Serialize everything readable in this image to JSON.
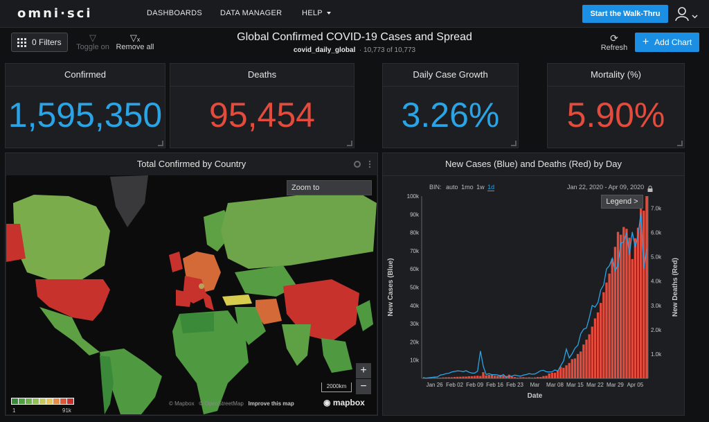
{
  "nav": {
    "logo": "omni·sci",
    "items": [
      "DASHBOARDS",
      "DATA MANAGER",
      "HELP"
    ],
    "walkthru_label": "Start the Walk-Thru"
  },
  "toolbar": {
    "filters_label": "0 Filters",
    "toggle_label": "Toggle on",
    "remove_label": "Remove all",
    "refresh_label": "Refresh",
    "add_chart_label": "Add Chart"
  },
  "dashboard": {
    "title": "Global Confirmed COVID-19 Cases and Spread",
    "source_table": "covid_daily_global",
    "row_count": "· 10,773 of 10,773"
  },
  "kpis": [
    {
      "title": "Confirmed",
      "value": "1,595,350",
      "color": "#2ba4e6"
    },
    {
      "title": "Deaths",
      "value": "95,454",
      "color": "#e34b3d"
    },
    {
      "title": "Daily Case Growth",
      "value": "3.26%",
      "color": "#2ba4e6"
    },
    {
      "title": "Mortality (%)",
      "value": "5.90%",
      "color": "#e34b3d"
    }
  ],
  "map_panel": {
    "title": "Total Confirmed by Country",
    "zoom_to_placeholder": "Zoom to",
    "zoom_in": "+",
    "zoom_out": "−",
    "scale_label": "2000km",
    "attribution_mapbox": "© Mapbox",
    "attribution_osm": "© OpenStreetMap",
    "improve_label": "Improve this map",
    "mapbox_logo": "mapbox",
    "legend_min": "1",
    "legend_max": "91k",
    "legend_colors": [
      "#3a8a3a",
      "#4fa03f",
      "#6eb04a",
      "#93bf57",
      "#c4c85f",
      "#e7c45a",
      "#e58d48",
      "#dc5a3c",
      "#c8322c"
    ],
    "colors": {
      "low": "#4f9a41",
      "mid": "#79a84a",
      "warm": "#d46a37",
      "hot": "#c8322c",
      "yellow": "#d7cc4d",
      "nodata": "#3a3b3e"
    }
  },
  "chart_panel": {
    "title": "New Cases (Blue) and Deaths (Red) by Day",
    "bin_label": "BIN:",
    "bin_options": [
      "auto",
      "1mo",
      "1w",
      "1d"
    ],
    "bin_selected": "1d",
    "date_range": "Jan 22, 2020  -  Apr 09, 2020",
    "legend_label": "Legend >"
  },
  "chart_data": {
    "type": "bar",
    "title": "New Cases (Blue) and Deaths (Red) by Day",
    "xlabel": "Date",
    "ylabel": "New Cases (Blue)",
    "y2label": "New Deaths (Red)",
    "x_ticks": [
      "Jan 26",
      "Feb 02",
      "Feb 09",
      "Feb 16",
      "Feb 23",
      "Mar",
      "Mar 08",
      "Mar 15",
      "Mar 22",
      "Mar 29",
      "Apr 05"
    ],
    "y_ticks": [
      "10k",
      "20k",
      "30k",
      "40k",
      "50k",
      "60k",
      "70k",
      "80k",
      "90k",
      "100k"
    ],
    "y2_ticks": [
      "1.0k",
      "2.0k",
      "3.0k",
      "4.0k",
      "5.0k",
      "6.0k",
      "7.0k"
    ],
    "ylim": [
      0,
      100000
    ],
    "y2lim": [
      0,
      7500
    ],
    "series": [
      {
        "name": "New Cases",
        "style": "line",
        "color": "#2ba4e6",
        "axis": "left",
        "values": [
          500,
          100,
          300,
          500,
          700,
          800,
          1800,
          2100,
          2600,
          2800,
          3500,
          3800,
          4100,
          4000,
          3700,
          4200,
          3400,
          2900,
          2900,
          3900,
          15000,
          6600,
          2100,
          2600,
          2000,
          2000,
          1900,
          1100,
          2100,
          600,
          1100,
          1200,
          1800,
          1400,
          1200,
          1800,
          2100,
          2600,
          2300,
          2400,
          3200,
          4200,
          4400,
          3600,
          3500,
          3600,
          4600,
          4000,
          6900,
          9500,
          16000,
          11200,
          13500,
          16500,
          18200,
          24400,
          27000,
          27600,
          33200,
          40000,
          39100,
          41600,
          48600,
          51200,
          60000,
          61800,
          65900,
          59200,
          61800,
          74200,
          74800,
          80000,
          67900,
          80300,
          71900,
          78400,
          91000,
          60000,
          71000
        ]
      },
      {
        "name": "New Deaths",
        "style": "bar",
        "color": "#e34b3d",
        "axis": "right",
        "values": [
          0,
          8,
          16,
          15,
          24,
          26,
          26,
          38,
          43,
          46,
          45,
          57,
          64,
          66,
          73,
          73,
          86,
          89,
          97,
          108,
          97,
          254,
          121,
          143,
          142,
          106,
          98,
          139,
          112,
          97,
          150,
          70,
          52,
          29,
          44,
          47,
          35,
          42,
          31,
          38,
          55,
          54,
          94,
          106,
          202,
          232,
          231,
          331,
          475,
          434,
          536,
          632,
          789,
          818,
          1003,
          1105,
          1393,
          1593,
          1812,
          2128,
          2467,
          2715,
          3104,
          3542,
          3944,
          4313,
          4920,
          5411,
          6028,
          5911,
          6228,
          6153,
          5788,
          4910,
          5765,
          6200,
          7400,
          6900,
          7500
        ]
      }
    ]
  }
}
